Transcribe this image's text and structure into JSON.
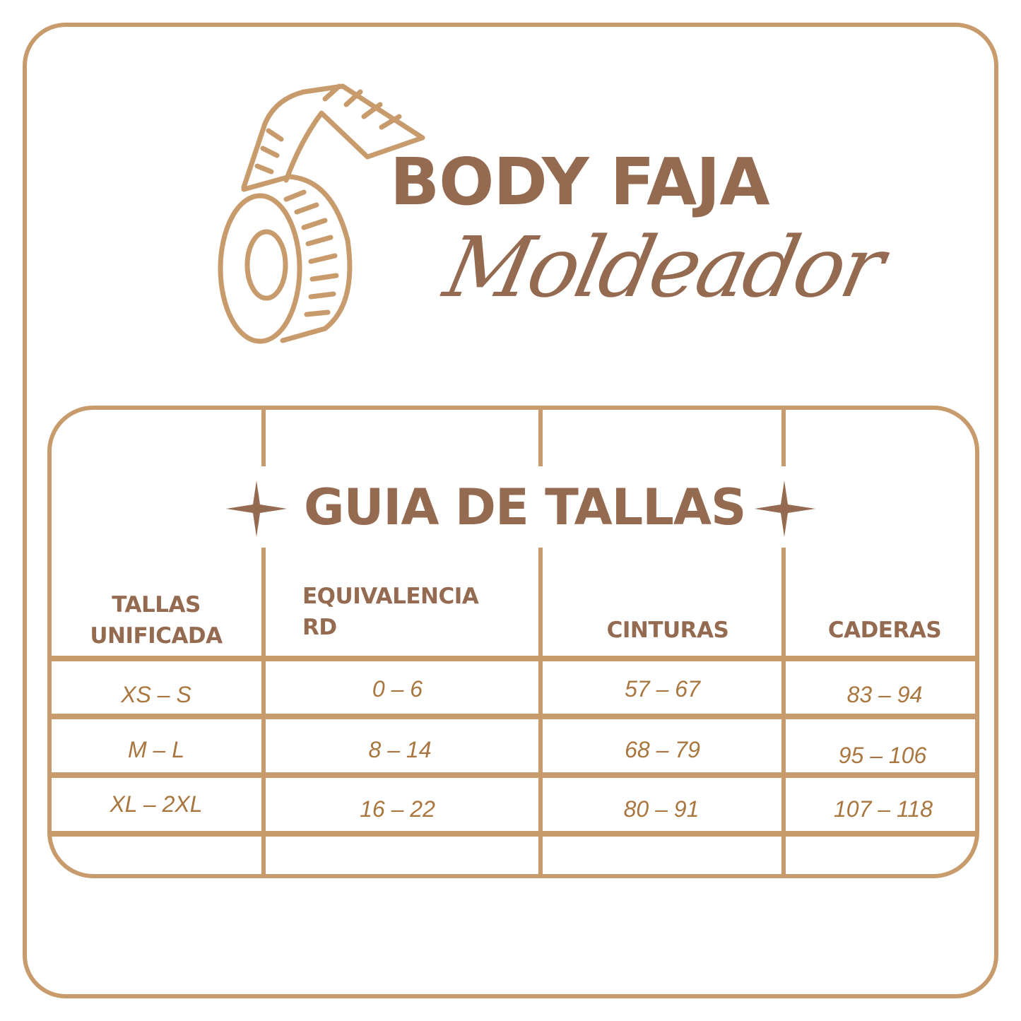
{
  "brand": {
    "name": "BODY FAJA",
    "tagline": "Moldeador",
    "logo_icon": "tape-measure-icon"
  },
  "colors": {
    "border": "#C89B6D",
    "heading": "#946A50",
    "value": "#A8763E"
  },
  "table": {
    "title": "GUIA DE TALLAS",
    "headers": [
      "TALLAS UNIFICADA",
      "EQUIVALENCIA RD",
      "CINTURAS",
      "CADERAS"
    ],
    "header_lines": [
      [
        "TALLAS",
        "UNIFICADA"
      ],
      [
        "EQUIVALENCIA",
        "RD"
      ],
      [
        "CINTURAS"
      ],
      [
        "CADERAS"
      ]
    ],
    "rows": [
      [
        "XS – S",
        "0 – 6",
        "57 – 67",
        "83 – 94"
      ],
      [
        "M – L",
        "8 – 14",
        "68 – 79",
        "95 – 106"
      ],
      [
        "XL – 2XL",
        "16 – 22",
        "80 – 91",
        "107 – 118"
      ]
    ]
  }
}
